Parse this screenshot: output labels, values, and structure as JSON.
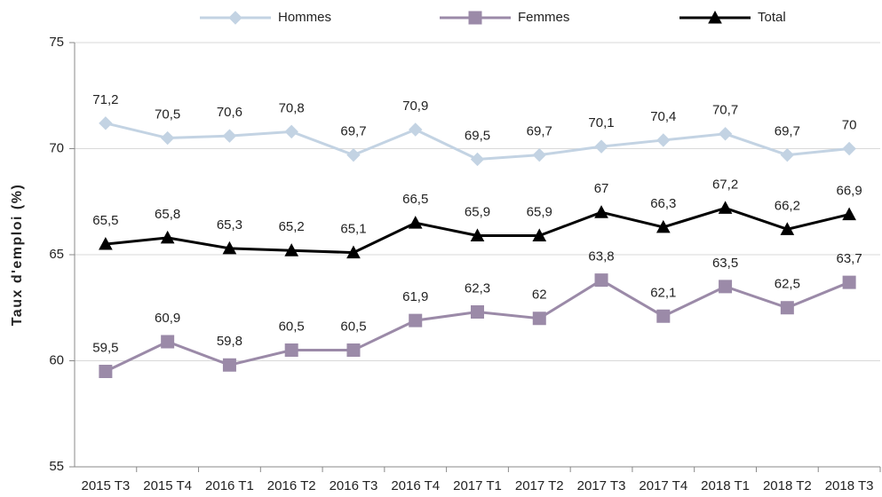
{
  "chart_data": {
    "type": "line",
    "y_label": "Taux d'emploi (%)",
    "categories": [
      "2015 T3",
      "2015 T4",
      "2016 T1",
      "2016 T2",
      "2016 T3",
      "2016 T4",
      "2017 T1",
      "2017 T2",
      "2017 T3",
      "2017 T4",
      "2018 T1",
      "2018 T2",
      "2018 T3"
    ],
    "series": [
      {
        "name": "Hommes",
        "color": "#c3d3e3",
        "marker": "diamond",
        "values": [
          71.2,
          70.5,
          70.6,
          70.8,
          69.7,
          70.9,
          69.5,
          69.7,
          70.1,
          70.4,
          70.7,
          69.7,
          70
        ],
        "value_labels": [
          "71,2",
          "70,5",
          "70,6",
          "70,8",
          "69,7",
          "70,9",
          "69,5",
          "69,7",
          "70,1",
          "70,4",
          "70,7",
          "69,7",
          "70"
        ]
      },
      {
        "name": "Femmes",
        "color": "#9b8aa8",
        "marker": "square",
        "values": [
          59.5,
          60.9,
          59.8,
          60.5,
          60.5,
          61.9,
          62.3,
          62,
          63.8,
          62.1,
          63.5,
          62.5,
          63.7
        ],
        "value_labels": [
          "59,5",
          "60,9",
          "59,8",
          "60,5",
          "60,5",
          "61,9",
          "62,3",
          "62",
          "63,8",
          "62,1",
          "63,5",
          "62,5",
          "63,7"
        ]
      },
      {
        "name": "Total",
        "color": "#000000",
        "marker": "triangle",
        "values": [
          65.5,
          65.8,
          65.3,
          65.2,
          65.1,
          66.5,
          65.9,
          65.9,
          67,
          66.3,
          67.2,
          66.2,
          66.9
        ],
        "value_labels": [
          "65,5",
          "65,8",
          "65,3",
          "65,2",
          "65,1",
          "66,5",
          "65,9",
          "65,9",
          "67",
          "66,3",
          "67,2",
          "66,2",
          "66,9"
        ]
      }
    ],
    "ylim": [
      55,
      75
    ],
    "yticks": [
      55,
      60,
      65,
      70,
      75
    ],
    "grid": true,
    "legend": "top"
  }
}
